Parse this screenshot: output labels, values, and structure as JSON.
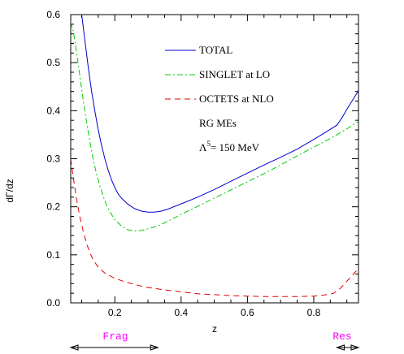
{
  "chart_data": {
    "type": "line",
    "xlabel": "z",
    "ylabel": "dΓ/dz",
    "xlim": [
      0.067,
      0.935
    ],
    "ylim": [
      0,
      0.6
    ],
    "xticks": [
      0.2,
      0.4,
      0.6,
      0.8
    ],
    "xtick_labels": [
      "0.2",
      "0.4",
      "0.6",
      "0.8"
    ],
    "yticks": [
      0,
      0.1,
      0.2,
      0.3,
      0.4,
      0.5,
      0.6
    ],
    "ytick_labels": [
      "0.0",
      "0.1",
      "0.2",
      "0.3",
      "0.4",
      "0.5",
      "0.6"
    ],
    "series": [
      {
        "name": "TOTAL",
        "color": "#0000cc",
        "dash": "solid",
        "x": [
          0.1,
          0.11,
          0.12,
          0.13,
          0.14,
          0.15,
          0.16,
          0.17,
          0.18,
          0.19,
          0.2,
          0.21,
          0.22,
          0.24,
          0.26,
          0.28,
          0.3,
          0.32,
          0.34,
          0.36,
          0.4,
          0.45,
          0.5,
          0.55,
          0.6,
          0.65,
          0.7,
          0.75,
          0.8,
          0.84,
          0.87,
          0.885,
          0.9,
          0.92,
          0.935
        ],
        "y": [
          0.6,
          0.545,
          0.49,
          0.44,
          0.398,
          0.36,
          0.328,
          0.3,
          0.276,
          0.256,
          0.24,
          0.227,
          0.218,
          0.205,
          0.196,
          0.191,
          0.189,
          0.189,
          0.191,
          0.195,
          0.206,
          0.22,
          0.236,
          0.253,
          0.27,
          0.287,
          0.303,
          0.32,
          0.34,
          0.357,
          0.37,
          0.385,
          0.403,
          0.425,
          0.442
        ]
      },
      {
        "name": "SINGLET at LO",
        "color": "#00cc00",
        "dash": "dashdot",
        "x": [
          0.067,
          0.075,
          0.085,
          0.095,
          0.105,
          0.115,
          0.125,
          0.135,
          0.145,
          0.155,
          0.165,
          0.175,
          0.185,
          0.2,
          0.22,
          0.24,
          0.26,
          0.28,
          0.3,
          0.32,
          0.34,
          0.36,
          0.4,
          0.45,
          0.5,
          0.55,
          0.6,
          0.65,
          0.7,
          0.75,
          0.8,
          0.85,
          0.9,
          0.935
        ],
        "y": [
          0.585,
          0.565,
          0.52,
          0.47,
          0.42,
          0.375,
          0.335,
          0.298,
          0.268,
          0.243,
          0.222,
          0.204,
          0.19,
          0.173,
          0.16,
          0.152,
          0.15,
          0.151,
          0.154,
          0.158,
          0.163,
          0.17,
          0.184,
          0.201,
          0.218,
          0.235,
          0.252,
          0.269,
          0.287,
          0.306,
          0.324,
          0.342,
          0.362,
          0.378
        ]
      },
      {
        "name": "OCTETS at NLO",
        "color": "#dd0000",
        "dash": "dashed",
        "x": [
          0.067,
          0.075,
          0.085,
          0.095,
          0.105,
          0.115,
          0.125,
          0.135,
          0.15,
          0.17,
          0.2,
          0.23,
          0.26,
          0.3,
          0.35,
          0.4,
          0.45,
          0.5,
          0.55,
          0.6,
          0.65,
          0.7,
          0.75,
          0.8,
          0.83,
          0.86,
          0.88,
          0.9,
          0.92,
          0.935
        ],
        "y": [
          0.3,
          0.26,
          0.215,
          0.178,
          0.148,
          0.123,
          0.104,
          0.089,
          0.074,
          0.062,
          0.051,
          0.044,
          0.038,
          0.032,
          0.027,
          0.023,
          0.019,
          0.017,
          0.015,
          0.014,
          0.013,
          0.013,
          0.013,
          0.014,
          0.016,
          0.02,
          0.03,
          0.045,
          0.06,
          0.072
        ]
      }
    ],
    "annotations": [
      "RG MEs",
      "Λ",
      "5",
      "= 150 MeV"
    ],
    "regions": [
      {
        "label": "Frag",
        "x_start": 0.067,
        "x_end": 0.33,
        "color": "#ff00ff"
      },
      {
        "label": "Res",
        "x_start": 0.87,
        "x_end": 0.935,
        "color": "#ff00ff"
      }
    ],
    "legend_position": "top-right",
    "grid": false
  }
}
